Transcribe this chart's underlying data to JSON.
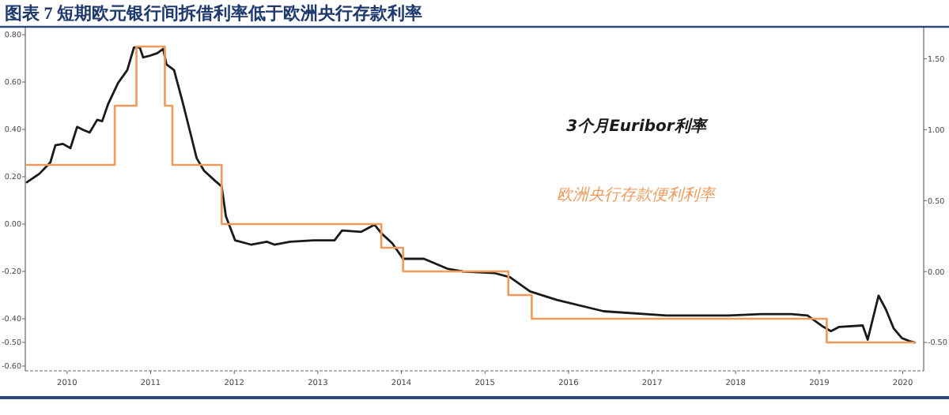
{
  "chart_data": {
    "type": "line",
    "title": "图表 7 短期欧元银行间拆借利率低于欧洲央行存款利率",
    "xlim": [
      2010.0,
      2020.75
    ],
    "xticks": [
      {
        "value": 2010.5,
        "label": "2010"
      },
      {
        "value": 2011.5,
        "label": "2011"
      },
      {
        "value": 2012.5,
        "label": "2012"
      },
      {
        "value": 2013.5,
        "label": "2013"
      },
      {
        "value": 2014.5,
        "label": "2014"
      },
      {
        "value": 2015.5,
        "label": "2015"
      },
      {
        "value": 2016.5,
        "label": "2016"
      },
      {
        "value": 2017.5,
        "label": "2017"
      },
      {
        "value": 2018.5,
        "label": "2018"
      },
      {
        "value": 2019.5,
        "label": "2019"
      },
      {
        "value": 2020.5,
        "label": "2020"
      }
    ],
    "ylim": [
      -0.62,
      0.83
    ],
    "yticks": [
      {
        "value": 0.8,
        "label": "0.80"
      },
      {
        "value": 0.6,
        "label": "0.60"
      },
      {
        "value": 0.4,
        "label": "0.40"
      },
      {
        "value": 0.2,
        "label": "0.20"
      },
      {
        "value": 0,
        "label": "0.00"
      },
      {
        "value": -0.2,
        "label": "-0.20"
      },
      {
        "value": -0.4,
        "label": "-0.40"
      },
      {
        "value": -0.5,
        "label": "-0.50"
      },
      {
        "value": -0.6,
        "label": "-0.60"
      }
    ],
    "y2lim": [
      -0.7,
      1.72
    ],
    "y2ticks": [
      {
        "value": 1.5,
        "label": "1.50"
      },
      {
        "value": 1,
        "label": "1.00"
      },
      {
        "value": 0.5,
        "label": "0.50"
      },
      {
        "value": 0,
        "label": "0.00"
      },
      {
        "value": -0.5,
        "label": "-0.50"
      }
    ],
    "legend": false,
    "grid": false,
    "series": [
      {
        "name": "3个月Euribor利率",
        "type": "line",
        "axis": "y2",
        "color": "#1a1a1a",
        "x": [
          2010.02,
          2010.17,
          2010.3,
          2010.36,
          2010.45,
          2010.54,
          2010.62,
          2010.69,
          2010.77,
          2010.86,
          2010.92,
          2010.99,
          2011.11,
          2011.22,
          2011.3,
          2011.37,
          2011.41,
          2011.48,
          2011.58,
          2011.65,
          2011.69,
          2011.78,
          2011.88,
          2011.97,
          2012.05,
          2012.14,
          2012.27,
          2012.35,
          2012.4,
          2012.51,
          2012.7,
          2012.89,
          2012.98,
          2013.17,
          2013.45,
          2013.7,
          2013.79,
          2014.02,
          2014.18,
          2014.26,
          2014.39,
          2014.52,
          2014.77,
          2015.05,
          2015.24,
          2015.61,
          2015.8,
          2016.04,
          2016.36,
          2016.92,
          2017.67,
          2018.42,
          2018.8,
          2019.17,
          2019.36,
          2019.55,
          2019.64,
          2019.74,
          2020.02,
          2020.08,
          2020.21,
          2020.3,
          2020.39,
          2020.49,
          2020.58,
          2020.64
        ],
        "values": [
          0.63,
          0.69,
          0.77,
          0.89,
          0.9,
          0.87,
          1.02,
          1.0,
          0.98,
          1.07,
          1.06,
          1.18,
          1.33,
          1.42,
          1.58,
          1.58,
          1.51,
          1.52,
          1.54,
          1.57,
          1.46,
          1.42,
          1.2,
          0.99,
          0.8,
          0.71,
          0.64,
          0.6,
          0.39,
          0.22,
          0.19,
          0.21,
          0.19,
          0.21,
          0.22,
          0.22,
          0.29,
          0.28,
          0.33,
          0.27,
          0.2,
          0.09,
          0.09,
          0.02,
          0.0,
          -0.01,
          -0.04,
          -0.14,
          -0.2,
          -0.28,
          -0.31,
          -0.31,
          -0.3,
          -0.3,
          -0.31,
          -0.39,
          -0.42,
          -0.39,
          -0.38,
          -0.48,
          -0.17,
          -0.27,
          -0.4,
          -0.47,
          -0.49,
          -0.5
        ]
      },
      {
        "name": "欧洲央行存款便利利率",
        "type": "step",
        "axis": "y",
        "color": "#ee9a5c",
        "x": [
          2010.02,
          2011.07,
          2011.33,
          2011.67,
          2011.76,
          2012.35,
          2014.26,
          2014.52,
          2015.78,
          2016.06,
          2019.59,
          2020.64
        ],
        "values": [
          0.25,
          0.5,
          0.75,
          0.5,
          0.25,
          0.0,
          -0.1,
          -0.2,
          -0.3,
          -0.4,
          -0.5,
          -0.5
        ]
      }
    ]
  }
}
